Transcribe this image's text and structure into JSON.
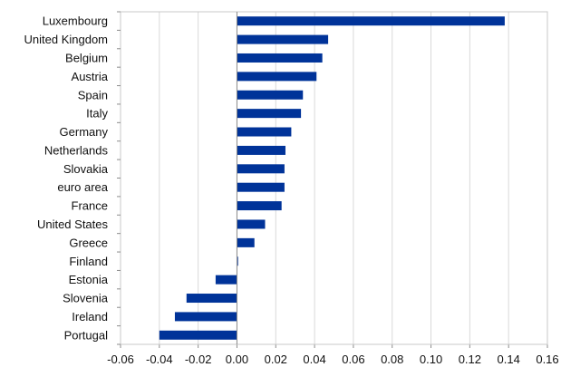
{
  "chart_data": {
    "type": "bar",
    "orientation": "horizontal",
    "categories": [
      "Luxembourg",
      "United Kingdom",
      "Belgium",
      "Austria",
      "Spain",
      "Italy",
      "Germany",
      "Netherlands",
      "Slovakia",
      "euro area",
      "France",
      "United States",
      "Greece",
      "Finland",
      "Estonia",
      "Slovenia",
      "Ireland",
      "Portugal"
    ],
    "values": [
      0.138,
      0.047,
      0.044,
      0.041,
      0.034,
      0.033,
      0.028,
      0.025,
      0.0245,
      0.0245,
      0.023,
      0.0145,
      0.009,
      0.0005,
      -0.011,
      -0.026,
      -0.032,
      -0.04
    ],
    "xlim": [
      -0.06,
      0.16
    ],
    "xticks": [
      "-0.06",
      "-0.04",
      "-0.02",
      "0.00",
      "0.02",
      "0.04",
      "0.06",
      "0.08",
      "0.10",
      "0.12",
      "0.14",
      "0.16"
    ],
    "grid": true,
    "bar_color": "#003399",
    "title": "",
    "xlabel": "",
    "ylabel": ""
  }
}
